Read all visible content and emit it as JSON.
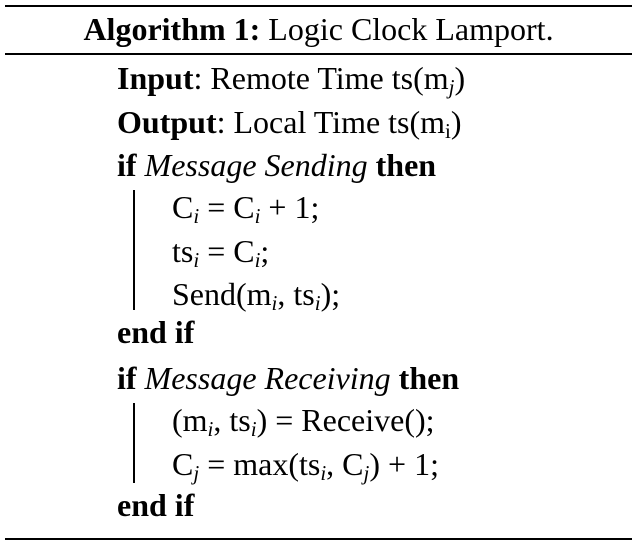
{
  "caption": {
    "label": "Algorithm 1:",
    "title": "Logic Clock Lamport."
  },
  "io": {
    "input_kw": "Input",
    "input_text": ": Remote Time ts(m",
    "input_sub": "j",
    "input_close": ")",
    "output_kw": "Output",
    "output_text": ": Local Time ts(m",
    "output_sub": "i",
    "output_close": ")"
  },
  "block1": {
    "if_kw": "if",
    "condition": "Message Sending",
    "then_kw": "then",
    "stmt1": {
      "a": "C",
      "a_sub": "i",
      "b": " = C",
      "b_sub": "i",
      "c": " + 1;"
    },
    "stmt2": {
      "a": "ts",
      "a_sub": "i",
      "b": " = C",
      "b_sub": "i",
      "c": ";"
    },
    "stmt3": {
      "a": "Send(m",
      "a_sub": "i",
      "b": ", ts",
      "b_sub": "i",
      "c": ");"
    },
    "end_kw": "end if"
  },
  "block2": {
    "if_kw": "if",
    "condition": "Message Receiving",
    "then_kw": "then",
    "stmt1": {
      "a": "(m",
      "a_sub": "i",
      "b": ", ts",
      "b_sub": "i",
      "c": ") = Receive();"
    },
    "stmt2": {
      "a": "C",
      "a_sub": "j",
      "b": " = max(ts",
      "b_sub": "i",
      "c": ", C",
      "c_sub": "j",
      "d": ") + 1;"
    },
    "end_kw": "end if"
  }
}
